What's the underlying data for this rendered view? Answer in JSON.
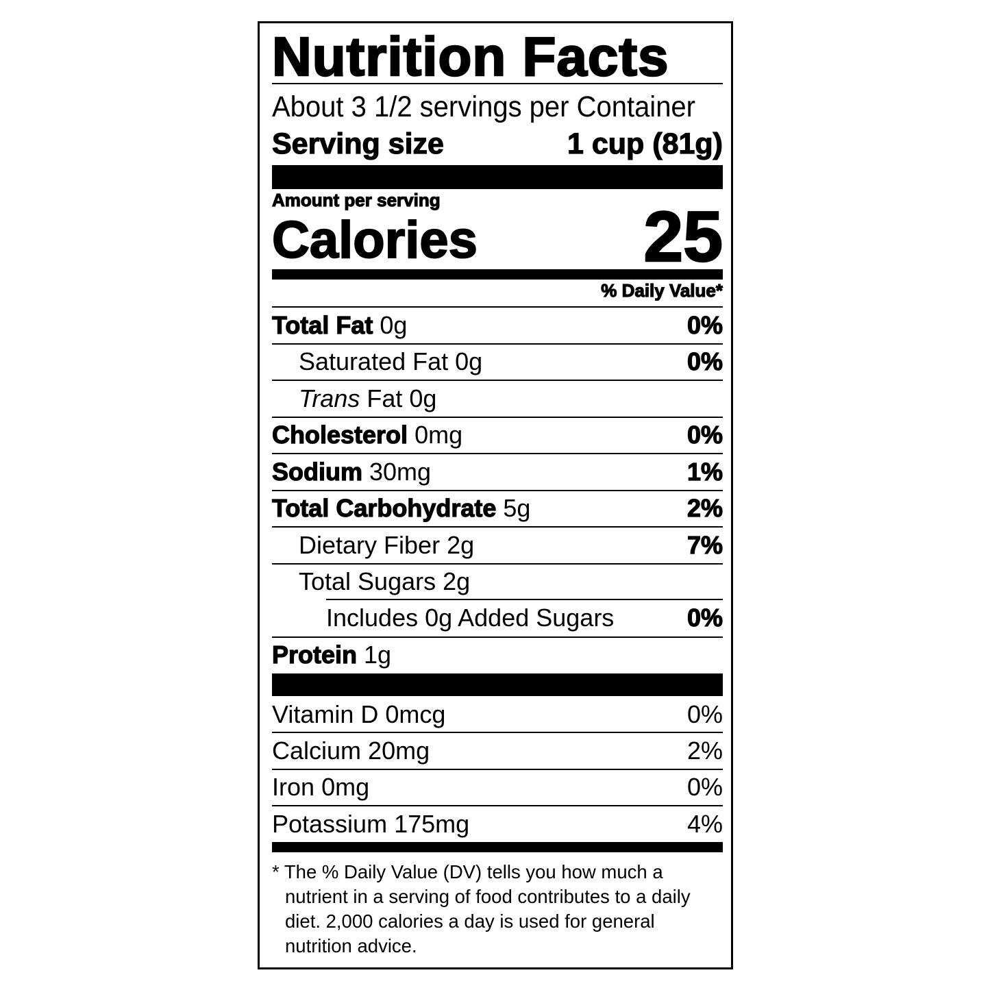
{
  "title": "Nutrition Facts",
  "servings_per_container": "About 3 1/2 servings per Container",
  "serving_size": {
    "label": "Serving size",
    "value": "1 cup (81g)"
  },
  "amount_per_serving": "Amount per serving",
  "calories": {
    "label": "Calories",
    "value": "25"
  },
  "daily_value_header": "% Daily Value*",
  "nutrients": [
    {
      "name": "Total Fat",
      "amount": "0g",
      "dv": "0%"
    },
    {
      "name": "Saturated Fat",
      "amount": "0g",
      "dv": "0%"
    },
    {
      "name": "Trans",
      "name_suffix": "Fat",
      "amount": "0g",
      "dv": ""
    },
    {
      "name": "Cholesterol",
      "amount": "0mg",
      "dv": "0%"
    },
    {
      "name": "Sodium",
      "amount": "30mg",
      "dv": "1%"
    },
    {
      "name": "Total Carbohydrate",
      "amount": "5g",
      "dv": "2%"
    },
    {
      "name": "Dietary Fiber",
      "amount": "2g",
      "dv": "7%"
    },
    {
      "name": "Total Sugars",
      "amount": "2g",
      "dv": ""
    },
    {
      "name": "Includes 0g Added Sugars",
      "amount": "",
      "dv": "0%"
    },
    {
      "name": "Protein",
      "amount": "1g",
      "dv": ""
    }
  ],
  "vitamins": [
    {
      "name": "Vitamin D",
      "amount": "0mcg",
      "dv": "0%"
    },
    {
      "name": "Calcium",
      "amount": "20mg",
      "dv": "2%"
    },
    {
      "name": "Iron",
      "amount": "0mg",
      "dv": "0%"
    },
    {
      "name": "Potassium",
      "amount": "175mg",
      "dv": "4%"
    }
  ],
  "footnote": "* The % Daily Value (DV) tells you how much a nutrient in a serving of food contributes to a daily diet. 2,000 calories a day is used for general nutrition advice."
}
